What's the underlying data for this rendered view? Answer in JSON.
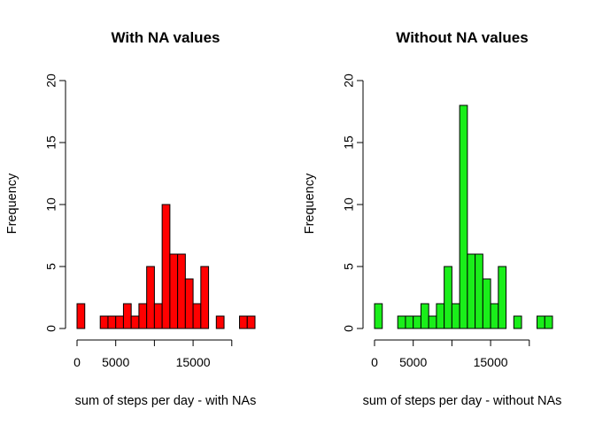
{
  "chart_data": [
    {
      "type": "bar",
      "title": "With NA values",
      "xlabel": "sum of steps per day - with NAs",
      "ylabel": "Frequency",
      "fill": "#ff0000",
      "bin_width": 1000,
      "bin_start": 0,
      "values": [
        2,
        0,
        0,
        1,
        1,
        1,
        2,
        1,
        2,
        5,
        2,
        10,
        6,
        6,
        4,
        2,
        5,
        0,
        1,
        0,
        0,
        1,
        1
      ],
      "xlim": [
        0,
        23000
      ],
      "ylim": [
        0,
        20
      ],
      "xticks": [
        0,
        5000,
        10000,
        15000,
        20000
      ],
      "xtick_labels": [
        "0",
        "5000",
        "",
        "15000",
        ""
      ],
      "yticks": [
        0,
        5,
        10,
        15,
        20
      ],
      "ytick_labels": [
        "0",
        "5",
        "10",
        "15",
        "20"
      ]
    },
    {
      "type": "bar",
      "title": "Without NA values",
      "xlabel": "sum of steps per day - without NAs",
      "ylabel": "Frequency",
      "fill": "#1aee1a",
      "bin_width": 1000,
      "bin_start": 0,
      "values": [
        2,
        0,
        0,
        1,
        1,
        1,
        2,
        1,
        2,
        5,
        2,
        18,
        6,
        6,
        4,
        2,
        5,
        0,
        1,
        0,
        0,
        1,
        1
      ],
      "xlim": [
        0,
        23000
      ],
      "ylim": [
        0,
        20
      ],
      "xticks": [
        0,
        5000,
        10000,
        15000,
        20000
      ],
      "xtick_labels": [
        "0",
        "5000",
        "",
        "15000",
        ""
      ],
      "yticks": [
        0,
        5,
        10,
        15,
        20
      ],
      "ytick_labels": [
        "0",
        "5",
        "10",
        "15",
        "20"
      ]
    }
  ]
}
